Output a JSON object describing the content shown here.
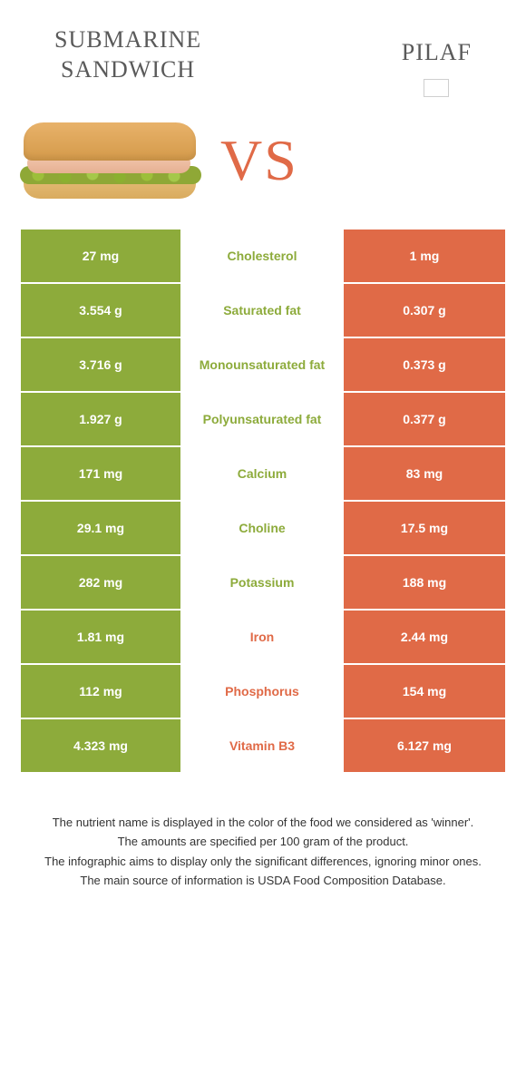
{
  "colors": {
    "left": "#8dab3b",
    "right": "#e06a47",
    "background": "#ffffff",
    "text_dark": "#333333",
    "title": "#5a5a5a"
  },
  "header": {
    "left_title": "SUBMARINE SANDWICH",
    "right_title": "PILAF",
    "vs": "VS"
  },
  "rows": [
    {
      "left": "27 mg",
      "label": "Cholesterol",
      "right": "1 mg",
      "winner": "left"
    },
    {
      "left": "3.554 g",
      "label": "Saturated fat",
      "right": "0.307 g",
      "winner": "left"
    },
    {
      "left": "3.716 g",
      "label": "Monounsaturated fat",
      "right": "0.373 g",
      "winner": "left"
    },
    {
      "left": "1.927 g",
      "label": "Polyunsaturated fat",
      "right": "0.377 g",
      "winner": "left"
    },
    {
      "left": "171 mg",
      "label": "Calcium",
      "right": "83 mg",
      "winner": "left"
    },
    {
      "left": "29.1 mg",
      "label": "Choline",
      "right": "17.5 mg",
      "winner": "left"
    },
    {
      "left": "282 mg",
      "label": "Potassium",
      "right": "188 mg",
      "winner": "left"
    },
    {
      "left": "1.81 mg",
      "label": "Iron",
      "right": "2.44 mg",
      "winner": "right"
    },
    {
      "left": "112 mg",
      "label": "Phosphorus",
      "right": "154 mg",
      "winner": "right"
    },
    {
      "left": "4.323 mg",
      "label": "Vitamin B3",
      "right": "6.127 mg",
      "winner": "right"
    }
  ],
  "footer": [
    "The nutrient name is displayed in the color of the food we considered as 'winner'.",
    "The amounts are specified per 100 gram of the product.",
    "The infographic aims to display only the significant differences, ignoring minor ones.",
    "The main source of information is USDA Food Composition Database."
  ]
}
